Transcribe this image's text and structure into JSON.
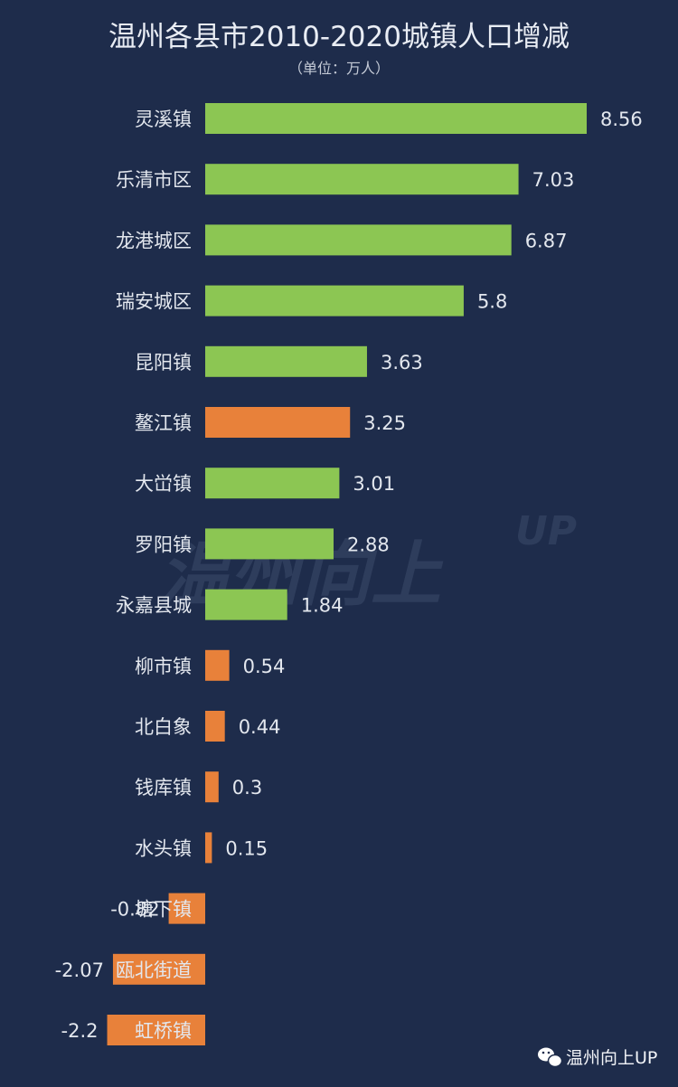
{
  "chart_data": {
    "type": "bar",
    "orientation": "horizontal",
    "title": "温州各县市2010-2020城镇人口增减",
    "subtitle": "（单位：万人）",
    "categories": [
      "灵溪镇",
      "乐清市区",
      "龙港城区",
      "瑞安城区",
      "昆阳镇",
      "鳌江镇",
      "大峃镇",
      "罗阳镇",
      "永嘉县城",
      "柳市镇",
      "北白象",
      "钱库镇",
      "水头镇",
      "塘下镇",
      "瓯北街道",
      "虹桥镇"
    ],
    "values": [
      8.56,
      7.03,
      6.87,
      5.8,
      3.63,
      3.25,
      3.01,
      2.88,
      1.84,
      0.54,
      0.44,
      0.3,
      0.15,
      -0.82,
      -2.07,
      -2.2
    ],
    "value_labels": [
      "8.56",
      "7.03",
      "6.87",
      "5.8",
      "3.63",
      "3.25",
      "3.01",
      "2.88",
      "1.84",
      "0.54",
      "0.44",
      "0.3",
      "0.15",
      "-0.82",
      "-2.07",
      "-2.2"
    ],
    "bar_color_groups": [
      "green",
      "green",
      "green",
      "green",
      "green",
      "orange",
      "green",
      "green",
      "green",
      "orange",
      "orange",
      "orange",
      "orange",
      "orange",
      "orange",
      "orange"
    ],
    "colors": {
      "green": "#8cc653",
      "orange": "#e8813a",
      "background": "#1e2c4b"
    },
    "grid": false,
    "legend": "none"
  },
  "watermark": {
    "text": "温州向上",
    "suffix": "UP"
  },
  "source": {
    "icon": "wechat-icon",
    "text": "温州向上UP"
  }
}
